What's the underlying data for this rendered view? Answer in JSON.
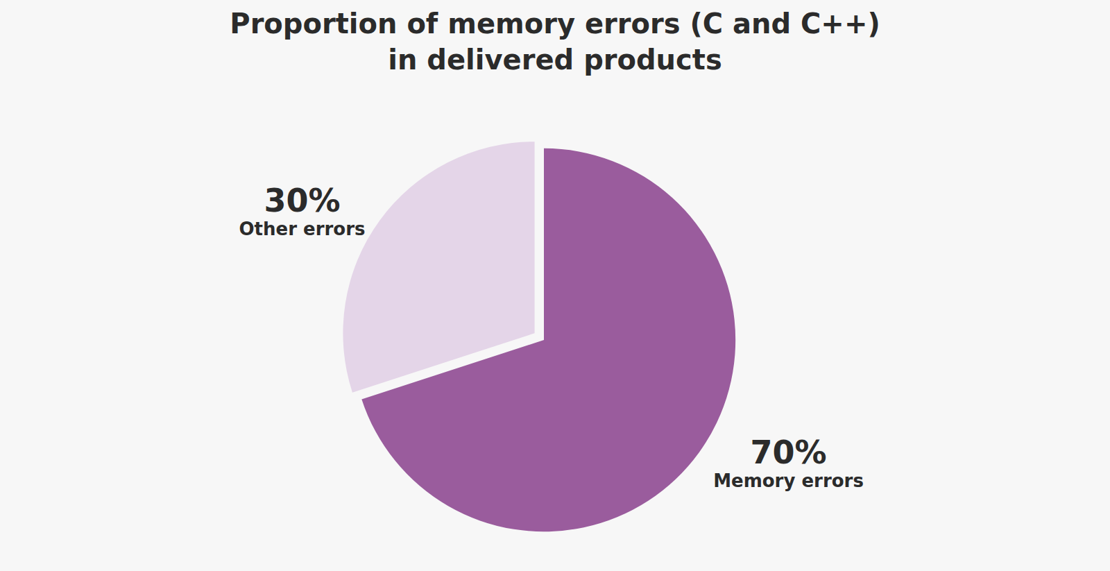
{
  "chart_data": {
    "type": "pie",
    "title": "Proportion of memory errors (C and C++)\nin delivered products",
    "categories": [
      "Memory errors",
      "Other errors"
    ],
    "values": [
      70,
      30
    ],
    "value_labels": [
      "70%",
      "30%"
    ],
    "colors": [
      "#9a5c9d",
      "#e4d5e8"
    ],
    "data_labels": true
  }
}
